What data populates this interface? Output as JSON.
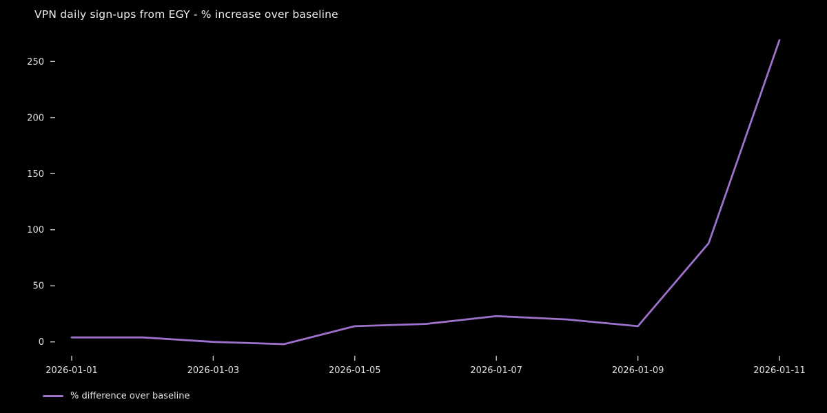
{
  "chart_data": {
    "type": "line",
    "title": "VPN daily sign-ups from EGY - % increase over baseline",
    "x": [
      "2026-01-01",
      "2026-01-02",
      "2026-01-03",
      "2026-01-04",
      "2026-01-05",
      "2026-01-06",
      "2026-01-07",
      "2026-01-08",
      "2026-01-09",
      "2026-01-10",
      "2026-01-11"
    ],
    "series": [
      {
        "name": "% difference over baseline",
        "values": [
          4,
          4,
          0,
          -2,
          14,
          16,
          23,
          20,
          14,
          88,
          269
        ]
      }
    ],
    "xlabel": "",
    "ylabel": "",
    "y_ticks": [
      0,
      50,
      100,
      150,
      200,
      250
    ],
    "x_tick_labels": [
      "2026-01-01",
      "2026-01-03",
      "2026-01-05",
      "2026-01-07",
      "2026-01-09",
      "2026-01-11"
    ],
    "x_tick_indices": [
      0,
      2,
      4,
      6,
      8,
      10
    ],
    "ylim": [
      -15,
      280
    ],
    "grid": "off",
    "legend_position": "lower-left",
    "colors": {
      "background": "#000000",
      "line": "#9e71cc",
      "title_text": "#f0f0f0",
      "tick_text": "#e0e0e0",
      "tick_mark": "#c8c8c8"
    }
  }
}
